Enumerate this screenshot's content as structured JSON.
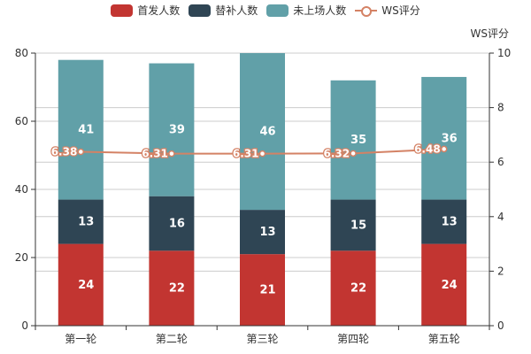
{
  "chart_data": {
    "type": "bar",
    "stacked": true,
    "categories": [
      "第一轮",
      "第二轮",
      "第三轮",
      "第四轮",
      "第五轮"
    ],
    "series": [
      {
        "name": "首发人数",
        "type": "bar",
        "color": "#c23531",
        "values": [
          24,
          22,
          21,
          22,
          24
        ]
      },
      {
        "name": "替补人数",
        "type": "bar",
        "color": "#2f4554",
        "values": [
          13,
          16,
          13,
          15,
          13
        ]
      },
      {
        "name": "未上场人数",
        "type": "bar",
        "color": "#61a0a8",
        "values": [
          41,
          39,
          46,
          35,
          36
        ]
      },
      {
        "name": "WS评分",
        "type": "line",
        "axis": "right",
        "color": "#d48265",
        "values": [
          6.38,
          6.31,
          6.31,
          6.32,
          6.48
        ]
      }
    ],
    "y_left": {
      "min": 0,
      "max": 80,
      "ticks": [
        0,
        20,
        40,
        60,
        80
      ],
      "label": ""
    },
    "y_right": {
      "min": 0,
      "max": 10,
      "ticks": [
        0,
        2,
        4,
        6,
        8,
        10
      ],
      "label": "WS评分"
    },
    "legend_position": "top-center"
  }
}
